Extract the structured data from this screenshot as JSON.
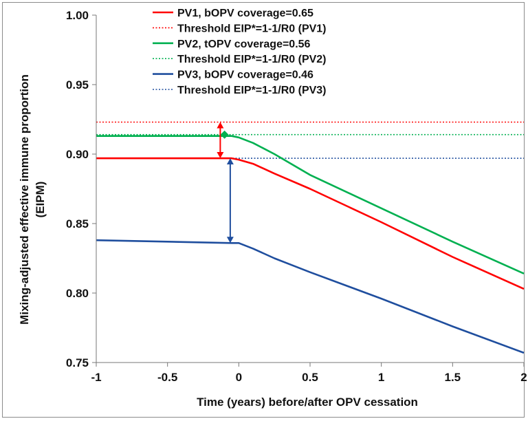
{
  "chart_data": {
    "type": "line",
    "title": "",
    "xlabel": "Time (years) before/after OPV cessation",
    "ylabel": "Mixing-adjusted effective immune proportion (EIPM)",
    "ylabel_line1": "Mixing-adjusted effective immune proportion",
    "ylabel_line2": "(EIPM)",
    "xlim": [
      -1,
      2
    ],
    "ylim": [
      0.75,
      1.0
    ],
    "x_ticks": [
      "-1",
      "-0.5",
      "0",
      "0.5",
      "1",
      "1.5",
      "2"
    ],
    "y_ticks": [
      "0.75",
      "0.80",
      "0.85",
      "0.90",
      "0.95",
      "1.00"
    ],
    "legend_position": "top",
    "series": [
      {
        "name": "PV1, bOPV coverage=0.65",
        "color": "#ff0000",
        "style": "solid",
        "x": [
          -1,
          -0.5,
          -0.05,
          0,
          0.1,
          0.25,
          0.5,
          1.0,
          1.5,
          2.0
        ],
        "y": [
          0.897,
          0.897,
          0.897,
          0.896,
          0.893,
          0.886,
          0.875,
          0.851,
          0.826,
          0.803
        ]
      },
      {
        "name": "Threshold EIP*=1-1/R0 (PV1)",
        "color": "#ff0000",
        "style": "dotted",
        "x": [
          -1,
          2
        ],
        "y": [
          0.923,
          0.923
        ]
      },
      {
        "name": "PV2, tOPV coverage=0.56",
        "color": "#00b050",
        "style": "solid",
        "x": [
          -1,
          -0.5,
          -0.05,
          0,
          0.1,
          0.25,
          0.5,
          1.0,
          1.5,
          2.0
        ],
        "y": [
          0.913,
          0.913,
          0.913,
          0.912,
          0.908,
          0.9,
          0.885,
          0.861,
          0.837,
          0.814
        ]
      },
      {
        "name": "Threshold EIP*=1-1/R0 (PV2)",
        "color": "#00b050",
        "style": "dotted",
        "x": [
          -1,
          2
        ],
        "y": [
          0.914,
          0.914
        ]
      },
      {
        "name": "PV3, bOPV coverage=0.46",
        "color": "#1f4e9e",
        "style": "solid",
        "x": [
          -1,
          -0.5,
          -0.05,
          0,
          0.1,
          0.25,
          0.5,
          1.0,
          1.5,
          2.0
        ],
        "y": [
          0.838,
          0.837,
          0.836,
          0.836,
          0.832,
          0.825,
          0.815,
          0.796,
          0.776,
          0.757
        ]
      },
      {
        "name": "Threshold EIP*=1-1/R0 (PV3)",
        "color": "#1f4e9e",
        "style": "dotted",
        "x": [
          -1,
          2
        ],
        "y": [
          0.897,
          0.897
        ]
      }
    ],
    "arrows": [
      {
        "color": "#ff0000",
        "x": -0.13,
        "y_from": 0.897,
        "y_to": 0.923
      },
      {
        "color": "#1f4e9e",
        "x": -0.06,
        "y_from": 0.836,
        "y_to": 0.897
      }
    ],
    "markers": [
      {
        "color": "#00b050",
        "shape": "diamond",
        "x": -0.1,
        "y": 0.914
      }
    ]
  }
}
